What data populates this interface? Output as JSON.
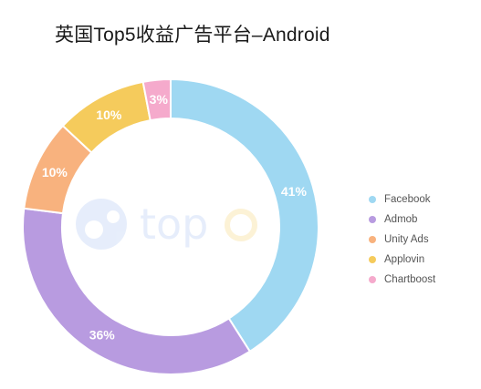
{
  "chart_data": {
    "type": "pie",
    "title": "英国Top5收益广告平台–Android",
    "categories": [
      "Facebook",
      "Admob",
      "Unity Ads",
      "Applovin",
      "Chartboost"
    ],
    "values": [
      41,
      36,
      10,
      10,
      3
    ],
    "value_labels": [
      "41%",
      "36%",
      "10%",
      "10%",
      "3%"
    ],
    "colors": [
      "#9fd8f2",
      "#b89be0",
      "#f8b27e",
      "#f5cb5c",
      "#f5aacc"
    ],
    "legend_placement": "right"
  },
  "watermark": {
    "text": "top",
    "colors": [
      "#a9c2f2",
      "#f7d98a"
    ]
  }
}
